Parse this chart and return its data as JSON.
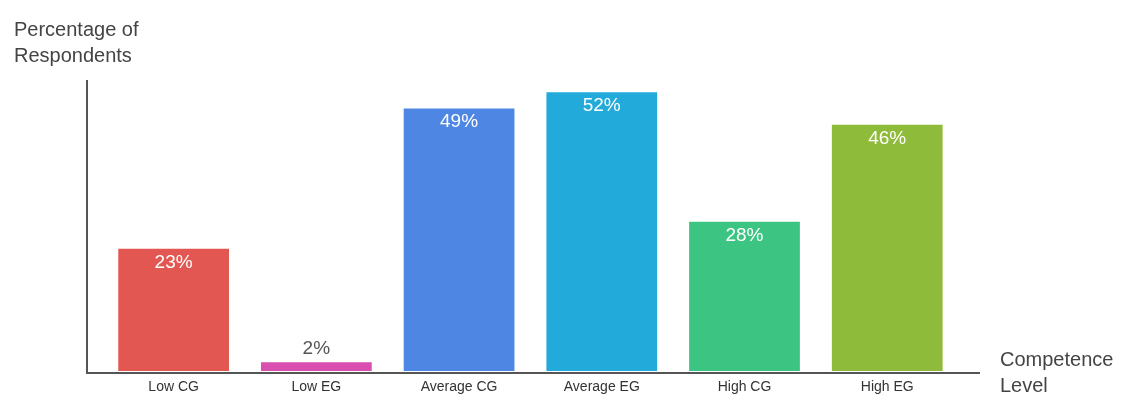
{
  "chart_data": {
    "type": "bar",
    "xlabel": "Competence Level",
    "ylabel": "Percentage of Respondents",
    "categories": [
      "Low CG",
      "Low EG",
      "Average CG",
      "Average EG",
      "High CG",
      "High EG"
    ],
    "values": [
      23,
      2,
      49,
      52,
      28,
      46
    ],
    "value_labels": [
      "23%",
      "2%",
      "49%",
      "52%",
      "28%",
      "46%"
    ],
    "colors": [
      "#e35752",
      "#d94fb0",
      "#4e86e4",
      "#22aadb",
      "#3cc482",
      "#8fbb3a"
    ],
    "legend": false,
    "tick_labels": "x"
  }
}
